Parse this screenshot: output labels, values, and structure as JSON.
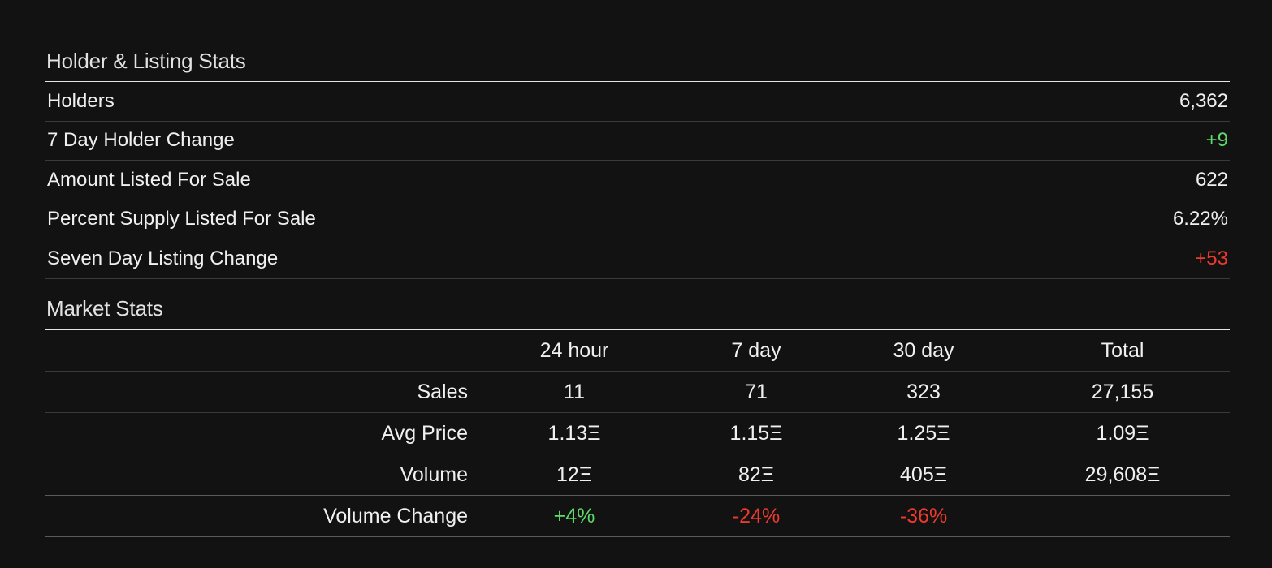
{
  "holder_listing": {
    "title": "Holder & Listing Stats",
    "rows": [
      {
        "label": "Holders",
        "value": "6,362",
        "tone": ""
      },
      {
        "label": "7 Day Holder Change",
        "value": "+9",
        "tone": "pos"
      },
      {
        "label": "Amount Listed For Sale",
        "value": "622",
        "tone": ""
      },
      {
        "label": "Percent Supply Listed For Sale",
        "value": "6.22%",
        "tone": ""
      },
      {
        "label": "Seven Day Listing Change",
        "value": "+53",
        "tone": "neg"
      }
    ]
  },
  "market": {
    "title": "Market Stats",
    "columns": [
      "",
      "24 hour",
      "7 day",
      "30 day",
      "Total"
    ],
    "rows": [
      {
        "label": "Sales",
        "values": [
          "11",
          "71",
          "323",
          "27,155"
        ]
      },
      {
        "label": "Avg Price",
        "values": [
          "1.13Ξ",
          "1.15Ξ",
          "1.25Ξ",
          "1.09Ξ"
        ]
      },
      {
        "label": "Volume",
        "values": [
          "12Ξ",
          "82Ξ",
          "405Ξ",
          "29,608Ξ"
        ]
      },
      {
        "label": "Volume Change",
        "values": [
          "+4%",
          "-24%",
          "-36%",
          ""
        ]
      }
    ]
  },
  "colors": {
    "background": "#121212",
    "positive": "#5fd86a",
    "negative": "#ee3a2e",
    "text": "#f0f0f0"
  }
}
